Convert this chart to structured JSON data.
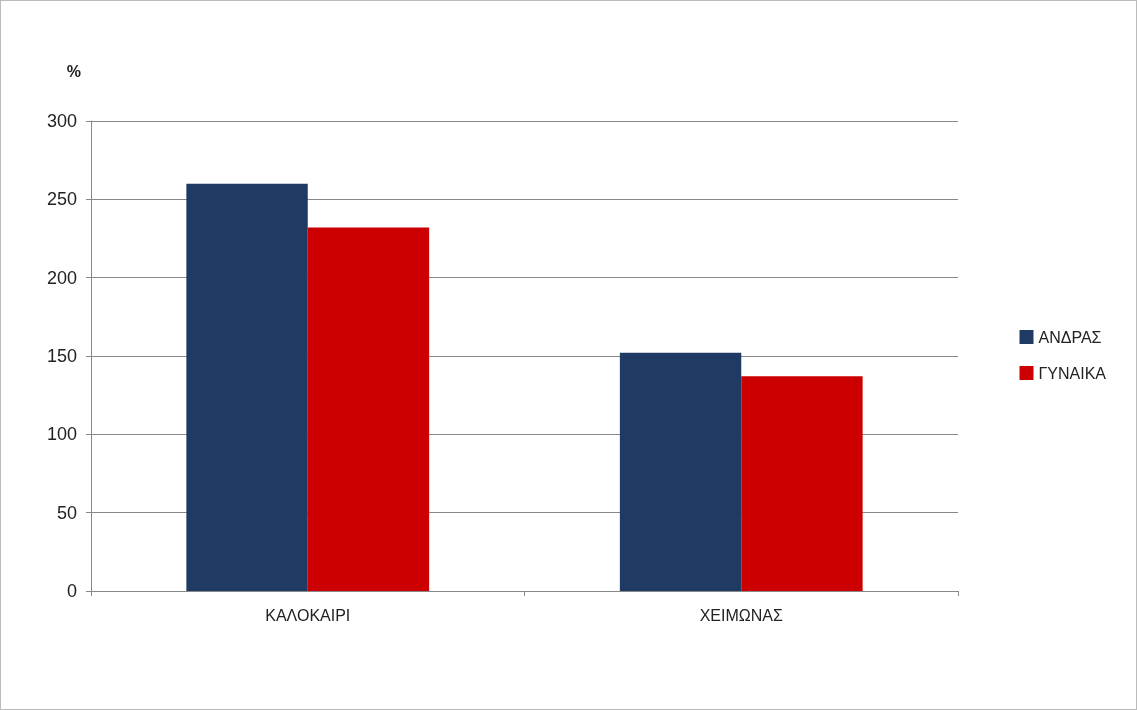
{
  "chart_data": {
    "type": "bar",
    "ylabel": "%",
    "categories": [
      "ΚΑΛΟΚΑΙΡΙ",
      "ΧΕΙΜΩΝΑΣ"
    ],
    "series": [
      {
        "name": "ΑΝΔΡΑΣ",
        "color": "#1f3b63",
        "values": [
          260,
          152
        ]
      },
      {
        "name": "ΓΥΝΑΙΚΑ",
        "color": "#cc0000",
        "values": [
          232,
          137
        ]
      }
    ],
    "ylim": [
      0,
      300
    ],
    "yticks": [
      0,
      50,
      100,
      150,
      200,
      250,
      300
    ],
    "grid": "y",
    "legend": "right"
  }
}
